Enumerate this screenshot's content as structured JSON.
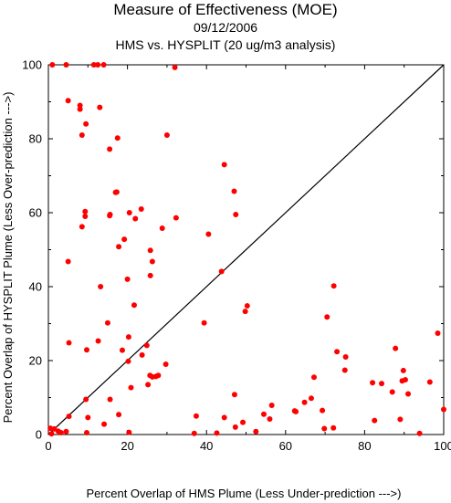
{
  "chart_data": {
    "type": "scatter",
    "title": "Measure of Effectiveness (MOE)",
    "subtitle_date": "09/12/2006",
    "subtitle_analysis": "HMS vs. HYSPLIT  (20 ug/m3 analysis)",
    "xlabel": "Percent Overlap of HMS Plume (Less Under-prediction --->)",
    "ylabel": "Percent Overlap of HYSPLIT Plume (Less Over-prediction --->)",
    "xlim": [
      0,
      100
    ],
    "ylim": [
      0,
      100
    ],
    "xticks": [
      "0",
      "20",
      "40",
      "60",
      "80",
      "100"
    ],
    "yticks": [
      "0",
      "20",
      "40",
      "60",
      "80",
      "100"
    ],
    "grid": false,
    "reference_line": "diagonal y = x",
    "point_color": "#ff0000",
    "points": [
      [
        1,
        100
      ],
      [
        4.5,
        100
      ],
      [
        11.5,
        100
      ],
      [
        12.5,
        100
      ],
      [
        14,
        100
      ],
      [
        32,
        99.3
      ],
      [
        5,
        90.3
      ],
      [
        8,
        89
      ],
      [
        8,
        88
      ],
      [
        13,
        88.5
      ],
      [
        9.5,
        84
      ],
      [
        8.5,
        81
      ],
      [
        17.5,
        80.2
      ],
      [
        30,
        81
      ],
      [
        15.5,
        77.2
      ],
      [
        44.5,
        73
      ],
      [
        47,
        65.8
      ],
      [
        17,
        65.5
      ],
      [
        17.3,
        65.6
      ],
      [
        23.5,
        61
      ],
      [
        9.3,
        60.3
      ],
      [
        20.5,
        60
      ],
      [
        15.6,
        59.5
      ],
      [
        15.5,
        59.2
      ],
      [
        9.3,
        59
      ],
      [
        22,
        58.4
      ],
      [
        32.3,
        58.6
      ],
      [
        47.4,
        59.5
      ],
      [
        8.5,
        56.2
      ],
      [
        28.8,
        55.8
      ],
      [
        40.5,
        54.2
      ],
      [
        19.2,
        52.8
      ],
      [
        17.8,
        50.8
      ],
      [
        25.8,
        49.8
      ],
      [
        5,
        46.8
      ],
      [
        26.3,
        46.8
      ],
      [
        43.8,
        44.1
      ],
      [
        20,
        42
      ],
      [
        25.8,
        43
      ],
      [
        13.2,
        40
      ],
      [
        72.2,
        40.2
      ],
      [
        21.7,
        35
      ],
      [
        50.3,
        34.8
      ],
      [
        49.8,
        33.3
      ],
      [
        70.5,
        31.8
      ],
      [
        15,
        30.2
      ],
      [
        39.4,
        30.2
      ],
      [
        20.3,
        26.4
      ],
      [
        98.5,
        27.4
      ],
      [
        5.2,
        24.8
      ],
      [
        12.6,
        25.3
      ],
      [
        24.9,
        24.1
      ],
      [
        18.7,
        22.8
      ],
      [
        9.7,
        22.9
      ],
      [
        87.8,
        23.3
      ],
      [
        73,
        22.4
      ],
      [
        75.2,
        21
      ],
      [
        23.7,
        21.5
      ],
      [
        20.2,
        19.8
      ],
      [
        29.7,
        19
      ],
      [
        89.8,
        17.3
      ],
      [
        75,
        17.4
      ],
      [
        25.7,
        16
      ],
      [
        26.3,
        15.6
      ],
      [
        27.2,
        15.7
      ],
      [
        27.8,
        16
      ],
      [
        67.2,
        15.5
      ],
      [
        82,
        14
      ],
      [
        84.3,
        13.8
      ],
      [
        89.5,
        14.5
      ],
      [
        90.3,
        14.8
      ],
      [
        96.5,
        14.2
      ],
      [
        25.2,
        13.5
      ],
      [
        20.9,
        12.7
      ],
      [
        91,
        11
      ],
      [
        87,
        11.5
      ],
      [
        47.1,
        10.8
      ],
      [
        9.5,
        9.5
      ],
      [
        15.6,
        9.5
      ],
      [
        64.8,
        8.7
      ],
      [
        56.5,
        7.9
      ],
      [
        66.5,
        9.8
      ],
      [
        100,
        6.8
      ],
      [
        69.3,
        6.5
      ],
      [
        62.3,
        6.4
      ],
      [
        62.6,
        6.2
      ],
      [
        54.5,
        5.5
      ],
      [
        17.8,
        5.4
      ],
      [
        37.4,
        5
      ],
      [
        5.2,
        4.9
      ],
      [
        10,
        4.6
      ],
      [
        44.5,
        4.6
      ],
      [
        56,
        4.2
      ],
      [
        82.5,
        3.8
      ],
      [
        89,
        4.1
      ],
      [
        49.2,
        3.3
      ],
      [
        14.1,
        2.8
      ],
      [
        47.3,
        2
      ],
      [
        69.8,
        1.6
      ],
      [
        72.1,
        1.8
      ],
      [
        0.5,
        1.7
      ],
      [
        1.5,
        1.5
      ],
      [
        2.5,
        0.9
      ],
      [
        3.2,
        0.5
      ],
      [
        4.5,
        0.8
      ],
      [
        0.8,
        0.2
      ],
      [
        9.7,
        0.5
      ],
      [
        20.4,
        0.6
      ],
      [
        36.9,
        0.3
      ],
      [
        42.6,
        0.4
      ],
      [
        52.5,
        0.8
      ],
      [
        93.9,
        0.3
      ]
    ]
  }
}
